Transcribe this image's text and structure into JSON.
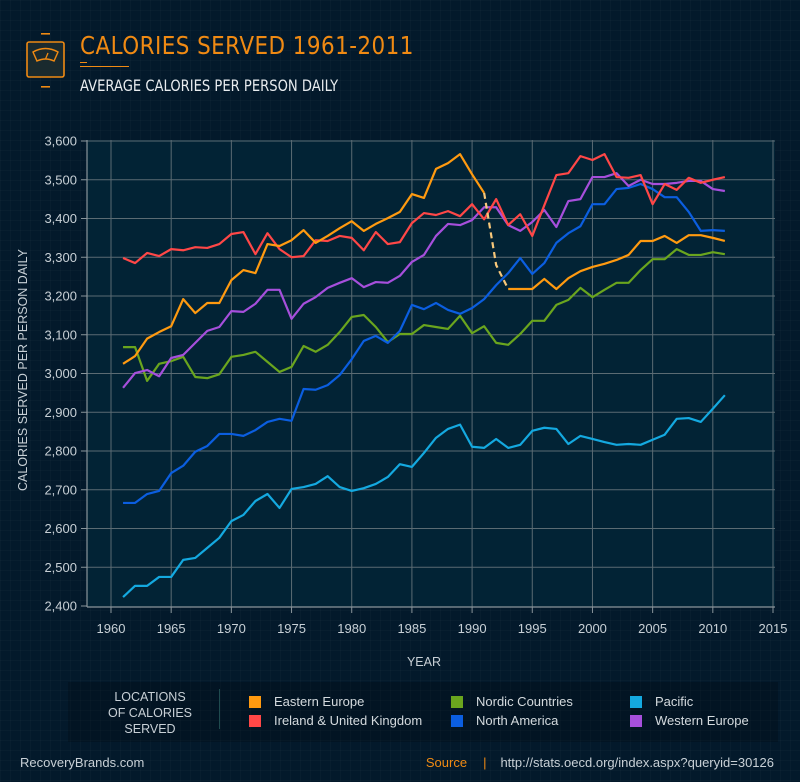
{
  "header": {
    "title": "CALORIES SERVED 1961-2011",
    "subtitle": "AVERAGE CALORIES PER PERSON DAILY",
    "icon": "scale-icon"
  },
  "legend": {
    "heading_lines": [
      "LOCATIONS",
      "OF CALORIES",
      "SERVED"
    ],
    "items": [
      {
        "label": "Eastern Europe",
        "color": "#ff9a10"
      },
      {
        "label": "Ireland & United Kingdom",
        "color": "#ff4747"
      },
      {
        "label": "Nordic Countries",
        "color": "#6aa51e"
      },
      {
        "label": "North America",
        "color": "#0b5ee0"
      },
      {
        "label": "Pacific",
        "color": "#14a9e0"
      },
      {
        "label": "Western Europe",
        "color": "#a64fdc"
      }
    ]
  },
  "footer": {
    "brand": "RecoveryBrands.com",
    "source_label": "Source",
    "separator": "|",
    "source_url": "http://stats.oecd.org/index.aspx?queryid=30126"
  },
  "chart_data": {
    "type": "line",
    "title": "CALORIES SERVED 1961-2011",
    "subtitle": "AVERAGE CALORIES PER PERSON DAILY",
    "xlabel": "YEAR",
    "ylabel": "CALORIES SERVED PER PERSON DAILY",
    "xlim": [
      1958,
      2015
    ],
    "ylim": [
      2400,
      3600
    ],
    "x_ticks": [
      1960,
      1965,
      1970,
      1975,
      1980,
      1985,
      1990,
      1995,
      2000,
      2005,
      2010,
      2015
    ],
    "y_ticks": [
      2400,
      2500,
      2600,
      2700,
      2800,
      2900,
      3000,
      3100,
      3200,
      3300,
      3400,
      3500,
      3600
    ],
    "y_tick_labels": [
      "2,400",
      "2,500",
      "2,600",
      "2,700",
      "2,800",
      "2,900",
      "3,000",
      "3,100",
      "3,200",
      "3,300",
      "3,400",
      "3,500",
      "3,600"
    ],
    "grid": true,
    "legend_position": "bottom",
    "x_start": 1961,
    "series": [
      {
        "name": "Eastern Europe",
        "color": "#ff9a10",
        "gap": {
          "from": 1991,
          "to": 1993,
          "style": "dashed",
          "color": "#f7c77a"
        },
        "values": [
          3025,
          3045,
          3090,
          3107,
          3122,
          3192,
          3156,
          3182,
          3182,
          3241,
          3267,
          3259,
          3334,
          3329,
          3344,
          3370,
          3337,
          3355,
          3375,
          3393,
          3368,
          3386,
          3401,
          3417,
          3463,
          3453,
          3528,
          3543,
          3566,
          3514,
          3466,
          3280,
          3218,
          3218,
          3218,
          3244,
          3218,
          3246,
          3264,
          3275,
          3283,
          3293,
          3306,
          3342,
          3342,
          3355,
          3337,
          3357,
          3357,
          3350,
          3342
        ]
      },
      {
        "name": "Ireland & United Kingdom",
        "color": "#ff4747",
        "values": [
          3298,
          3285,
          3311,
          3303,
          3321,
          3318,
          3326,
          3324,
          3334,
          3360,
          3365,
          3308,
          3362,
          3321,
          3300,
          3303,
          3344,
          3342,
          3355,
          3350,
          3318,
          3365,
          3334,
          3339,
          3388,
          3414,
          3409,
          3419,
          3406,
          3437,
          3398,
          3450,
          3383,
          3411,
          3355,
          3434,
          3512,
          3517,
          3561,
          3551,
          3566,
          3507,
          3505,
          3512,
          3437,
          3489,
          3474,
          3505,
          3492,
          3500,
          3507
        ]
      },
      {
        "name": "Nordic Countries",
        "color": "#6aa51e",
        "values": [
          3068,
          3068,
          2981,
          3025,
          3032,
          3043,
          2991,
          2988,
          2998,
          3043,
          3048,
          3056,
          3030,
          3004,
          3017,
          3071,
          3056,
          3074,
          3107,
          3146,
          3151,
          3120,
          3081,
          3102,
          3102,
          3125,
          3120,
          3115,
          3149,
          3104,
          3122,
          3079,
          3074,
          3102,
          3136,
          3136,
          3177,
          3190,
          3221,
          3197,
          3216,
          3234,
          3234,
          3267,
          3295,
          3295,
          3321,
          3306,
          3306,
          3313,
          3308
        ]
      },
      {
        "name": "North America",
        "color": "#0b5ee0",
        "values": [
          2666,
          2666,
          2689,
          2697,
          2743,
          2762,
          2798,
          2813,
          2844,
          2844,
          2839,
          2854,
          2875,
          2883,
          2878,
          2960,
          2958,
          2970,
          2996,
          3037,
          3084,
          3097,
          3079,
          3110,
          3177,
          3166,
          3182,
          3164,
          3154,
          3169,
          3192,
          3228,
          3259,
          3298,
          3257,
          3285,
          3337,
          3362,
          3380,
          3437,
          3437,
          3476,
          3479,
          3489,
          3476,
          3455,
          3455,
          3417,
          3368,
          3370,
          3368
        ]
      },
      {
        "name": "Pacific",
        "color": "#14a9e0",
        "values": [
          2423,
          2452,
          2452,
          2475,
          2475,
          2519,
          2524,
          2550,
          2576,
          2619,
          2635,
          2671,
          2689,
          2653,
          2702,
          2707,
          2715,
          2735,
          2707,
          2697,
          2704,
          2715,
          2733,
          2766,
          2759,
          2795,
          2834,
          2857,
          2868,
          2811,
          2808,
          2831,
          2808,
          2816,
          2852,
          2860,
          2857,
          2818,
          2839,
          2831,
          2823,
          2816,
          2818,
          2816,
          2829,
          2842,
          2883,
          2885,
          2875,
          2909,
          2944
        ]
      },
      {
        "name": "Western Europe",
        "color": "#a64fdc",
        "values": [
          2963,
          3001,
          3009,
          2993,
          3040,
          3048,
          3079,
          3110,
          3120,
          3161,
          3159,
          3180,
          3216,
          3216,
          3141,
          3180,
          3197,
          3221,
          3234,
          3246,
          3223,
          3236,
          3234,
          3252,
          3288,
          3306,
          3355,
          3386,
          3383,
          3396,
          3429,
          3429,
          3383,
          3368,
          3391,
          3422,
          3378,
          3445,
          3450,
          3507,
          3507,
          3517,
          3484,
          3500,
          3489,
          3489,
          3492,
          3497,
          3497,
          3476,
          3471
        ]
      }
    ]
  }
}
